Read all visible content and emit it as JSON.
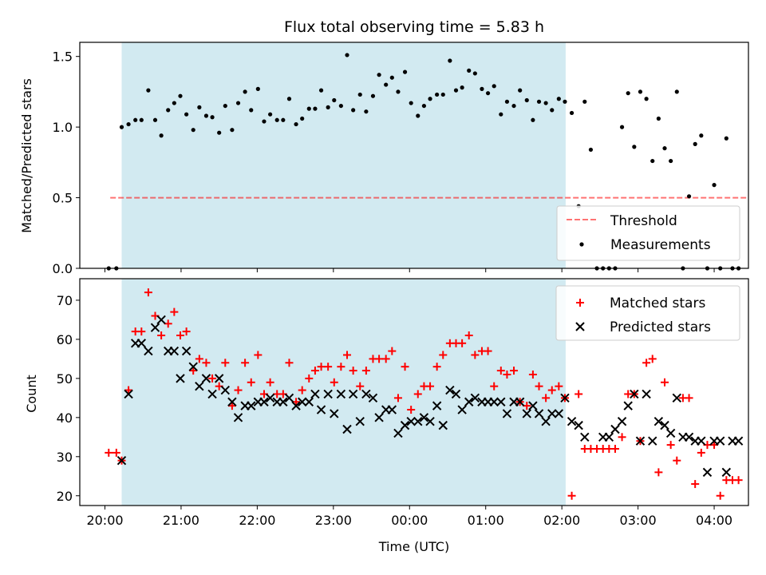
{
  "chart_data": {
    "title": "Flux total observing time = 5.83 h",
    "xlabel": "Time (UTC)",
    "x_unit": "hours after 20:00 UTC",
    "x_ticks": [
      {
        "v": 0,
        "label": "20:00"
      },
      {
        "v": 1,
        "label": "21:00"
      },
      {
        "v": 2,
        "label": "22:00"
      },
      {
        "v": 3,
        "label": "23:00"
      },
      {
        "v": 4,
        "label": "00:00"
      },
      {
        "v": 5,
        "label": "01:00"
      },
      {
        "v": 6,
        "label": "02:00"
      },
      {
        "v": 7,
        "label": "03:00"
      },
      {
        "v": 8,
        "label": "04:00"
      }
    ],
    "xlim": [
      -0.33,
      8.45
    ],
    "observing_window": [
      0.22,
      6.05
    ],
    "observing_color": "#add8e6",
    "top": {
      "type": "scatter",
      "ylabel": "Matched/Predicted stars",
      "ylim": [
        0,
        1.6
      ],
      "y_ticks": [
        0,
        0.5,
        1.0,
        1.5
      ],
      "y_tick_labels": [
        "0.0",
        "0.5",
        "1.0",
        "1.5"
      ],
      "threshold": {
        "name": "Threshold",
        "value": 0.5,
        "x_range": [
          0.07,
          8.45
        ],
        "color": "#ff0000"
      },
      "legend": [
        "Threshold",
        "Measurements"
      ],
      "legend_position": "lower-right",
      "series": [
        {
          "name": "Measurements",
          "color": "#000000",
          "x": [
            0.05,
            0.15,
            0.22,
            0.31,
            0.4,
            0.48,
            0.57,
            0.66,
            0.74,
            0.83,
            0.91,
            0.99,
            1.07,
            1.16,
            1.24,
            1.33,
            1.41,
            1.5,
            1.58,
            1.67,
            1.75,
            1.84,
            1.92,
            2.01,
            2.09,
            2.17,
            2.26,
            2.34,
            2.42,
            2.51,
            2.59,
            2.68,
            2.76,
            2.84,
            2.93,
            3.01,
            3.1,
            3.18,
            3.26,
            3.35,
            3.43,
            3.52,
            3.6,
            3.69,
            3.77,
            3.85,
            3.94,
            4.02,
            4.11,
            4.19,
            4.27,
            4.36,
            4.44,
            4.53,
            4.61,
            4.69,
            4.78,
            4.86,
            4.95,
            5.03,
            5.11,
            5.2,
            5.28,
            5.37,
            5.45,
            5.54,
            5.62,
            5.7,
            5.79,
            5.87,
            5.96,
            6.04,
            6.13,
            6.22,
            6.3,
            6.38,
            6.46,
            6.54,
            6.62,
            6.7,
            6.79,
            6.87,
            6.95,
            7.03,
            7.11,
            7.19,
            7.27,
            7.35,
            7.43,
            7.51,
            7.59,
            7.67,
            7.75,
            7.83,
            7.91,
            8.0,
            8.08,
            8.16,
            8.24,
            8.32
          ],
          "y": [
            0,
            0,
            1.0,
            1.02,
            1.05,
            1.05,
            1.26,
            1.05,
            0.94,
            1.12,
            1.17,
            1.22,
            1.09,
            0.98,
            1.14,
            1.08,
            1.07,
            0.96,
            1.15,
            0.98,
            1.17,
            1.25,
            1.12,
            1.27,
            1.04,
            1.09,
            1.05,
            1.05,
            1.2,
            1.02,
            1.06,
            1.13,
            1.13,
            1.26,
            1.14,
            1.19,
            1.15,
            1.51,
            1.12,
            1.23,
            1.11,
            1.22,
            1.37,
            1.3,
            1.35,
            1.25,
            1.39,
            1.17,
            1.08,
            1.15,
            1.2,
            1.23,
            1.23,
            1.47,
            1.26,
            1.28,
            1.4,
            1.38,
            1.27,
            1.24,
            1.29,
            1.09,
            1.18,
            1.15,
            1.26,
            1.19,
            1.05,
            1.18,
            1.17,
            1.12,
            1.2,
            1.18,
            1.1,
            0.44,
            1.18,
            0.84,
            0,
            0,
            0,
            0,
            1.0,
            1.24,
            0.86,
            1.25,
            1.2,
            0.76,
            1.06,
            0.85,
            0.76,
            1.25,
            0,
            0.51,
            0.88,
            0.94,
            0,
            0.59,
            0,
            0.92,
            0,
            0
          ]
        }
      ]
    },
    "bottom": {
      "type": "scatter",
      "ylabel": "Count",
      "ylim": [
        17.5,
        75.5
      ],
      "y_ticks": [
        20,
        30,
        40,
        50,
        60,
        70
      ],
      "y_tick_labels": [
        "20",
        "30",
        "40",
        "50",
        "60",
        "70"
      ],
      "legend": [
        "Matched stars",
        "Predicted stars"
      ],
      "legend_position": "upper-right",
      "series": [
        {
          "name": "Matched stars",
          "marker": "plus",
          "color": "#ff0000",
          "x": [
            0.05,
            0.15,
            0.22,
            0.31,
            0.4,
            0.48,
            0.57,
            0.66,
            0.74,
            0.83,
            0.91,
            0.99,
            1.07,
            1.16,
            1.24,
            1.33,
            1.41,
            1.5,
            1.58,
            1.67,
            1.75,
            1.84,
            1.92,
            2.01,
            2.09,
            2.17,
            2.26,
            2.34,
            2.42,
            2.51,
            2.59,
            2.68,
            2.76,
            2.84,
            2.93,
            3.01,
            3.1,
            3.18,
            3.26,
            3.35,
            3.43,
            3.52,
            3.6,
            3.69,
            3.77,
            3.85,
            3.94,
            4.02,
            4.11,
            4.19,
            4.27,
            4.36,
            4.44,
            4.53,
            4.61,
            4.69,
            4.78,
            4.86,
            4.95,
            5.03,
            5.11,
            5.2,
            5.28,
            5.37,
            5.45,
            5.54,
            5.62,
            5.7,
            5.79,
            5.87,
            5.96,
            6.04,
            6.13,
            6.22,
            6.3,
            6.38,
            6.46,
            6.54,
            6.62,
            6.7,
            6.79,
            6.87,
            6.95,
            7.03,
            7.11,
            7.19,
            7.27,
            7.35,
            7.43,
            7.51,
            7.59,
            7.67,
            7.75,
            7.83,
            7.91,
            8.0,
            8.08,
            8.16,
            8.24,
            8.32
          ],
          "y": [
            31,
            31,
            29,
            47,
            62,
            62,
            72,
            66,
            61,
            64,
            67,
            61,
            62,
            52,
            55,
            54,
            50,
            48,
            54,
            43,
            47,
            54,
            49,
            56,
            46,
            49,
            46,
            46,
            54,
            44,
            47,
            50,
            52,
            53,
            53,
            49,
            53,
            56,
            52,
            48,
            52,
            55,
            55,
            55,
            57,
            45,
            53,
            42,
            46,
            48,
            48,
            53,
            56,
            59,
            59,
            59,
            61,
            56,
            57,
            57,
            48,
            52,
            51,
            52,
            44,
            43,
            51,
            48,
            45,
            47,
            48,
            45,
            20,
            46,
            32,
            32,
            32,
            32,
            32,
            32,
            35,
            46,
            46,
            34,
            54,
            55,
            26,
            49,
            33,
            29,
            45,
            45,
            23,
            31,
            33,
            33,
            20,
            24,
            24,
            24
          ]
        },
        {
          "name": "Predicted stars",
          "marker": "x",
          "color": "#000000",
          "x": [
            0.22,
            0.31,
            0.4,
            0.48,
            0.57,
            0.66,
            0.74,
            0.83,
            0.91,
            0.99,
            1.07,
            1.16,
            1.24,
            1.33,
            1.41,
            1.5,
            1.58,
            1.67,
            1.75,
            1.84,
            1.92,
            2.01,
            2.09,
            2.17,
            2.26,
            2.34,
            2.42,
            2.51,
            2.59,
            2.68,
            2.76,
            2.84,
            2.93,
            3.01,
            3.1,
            3.18,
            3.26,
            3.35,
            3.43,
            3.52,
            3.6,
            3.69,
            3.77,
            3.85,
            3.94,
            4.02,
            4.11,
            4.19,
            4.27,
            4.36,
            4.44,
            4.53,
            4.61,
            4.69,
            4.78,
            4.86,
            4.95,
            5.03,
            5.11,
            5.2,
            5.28,
            5.37,
            5.45,
            5.54,
            5.62,
            5.7,
            5.79,
            5.87,
            5.96,
            6.04,
            6.13,
            6.22,
            6.3,
            6.54,
            6.62,
            6.7,
            6.79,
            6.87,
            6.95,
            7.03,
            7.11,
            7.19,
            7.27,
            7.35,
            7.43,
            7.51,
            7.59,
            7.67,
            7.75,
            7.83,
            7.91,
            8.0,
            8.08,
            8.16,
            8.24,
            8.32
          ],
          "y": [
            29,
            46,
            59,
            59,
            57,
            63,
            65,
            57,
            57,
            50,
            57,
            53,
            48,
            50,
            46,
            50,
            47,
            44,
            40,
            43,
            43,
            44,
            44,
            45,
            44,
            44,
            45,
            43,
            44,
            44,
            46,
            42,
            46,
            41,
            46,
            37,
            46,
            39,
            46,
            45,
            40,
            42,
            42,
            36,
            38,
            39,
            39,
            40,
            39,
            43,
            38,
            47,
            46,
            42,
            44,
            45,
            44,
            44,
            44,
            44,
            41,
            44,
            44,
            41,
            43,
            41,
            39,
            41,
            41,
            45,
            39,
            38,
            35,
            35,
            35,
            37,
            39,
            43,
            46,
            34,
            46,
            34,
            39,
            38,
            36,
            45,
            35,
            35,
            34,
            34,
            26,
            34,
            34,
            26,
            34,
            34
          ]
        }
      ]
    }
  }
}
